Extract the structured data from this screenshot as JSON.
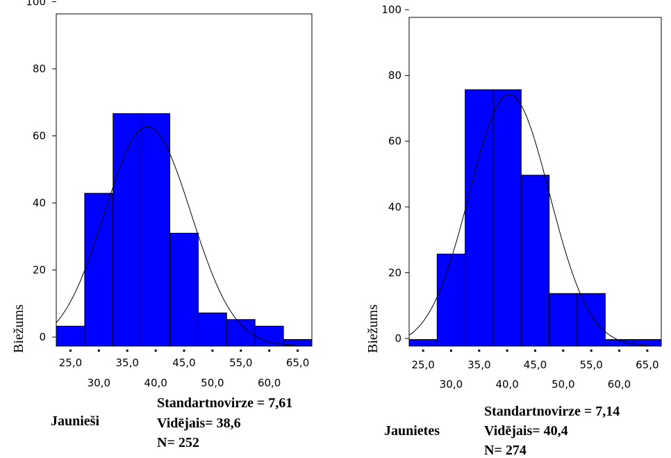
{
  "chart_data": [
    {
      "type": "bar",
      "subtype": "histogram-with-normal-curve",
      "title": "",
      "xlabel": "",
      "ylabel": "Biežums",
      "group_label": "Jaunieši",
      "ylim": [
        0,
        100
      ],
      "yticks": [
        "0",
        "20",
        "40",
        "60",
        "80",
        "100"
      ],
      "xlim": [
        22.5,
        67.5
      ],
      "bin_width": 5,
      "bin_centers": [
        25,
        30,
        35,
        40,
        45,
        50,
        55,
        60,
        65
      ],
      "values": [
        6,
        46,
        70,
        70,
        34,
        10,
        8,
        6,
        2
      ],
      "xticks_top": [
        "25,0",
        "35,0",
        "45,0",
        "55,0",
        "65,0"
      ],
      "xticks_bottom": [
        "30,0",
        "40,0",
        "50,0",
        "60,0"
      ],
      "bar_color": "#0000ff",
      "normal_curve": {
        "mean": 38.6,
        "std": 7.61,
        "n": 252
      },
      "stats": {
        "std_label": "Standartnovirze = 7,61",
        "mean_label": "Vidējais= 38,6",
        "n_label": "N= 252"
      }
    },
    {
      "type": "bar",
      "subtype": "histogram-with-normal-curve",
      "title": "",
      "xlabel": "",
      "ylabel": "Biežums",
      "group_label": "Jaunietes",
      "ylim": [
        0,
        100
      ],
      "yticks": [
        "0",
        "20",
        "40",
        "60",
        "80",
        "100"
      ],
      "xlim": [
        22.5,
        67.5
      ],
      "bin_width": 5,
      "bin_centers": [
        25,
        30,
        35,
        40,
        45,
        50,
        55,
        60,
        65
      ],
      "values": [
        2,
        28,
        78,
        78,
        52,
        16,
        16,
        2,
        2
      ],
      "xticks_top": [
        "25,0",
        "35,0",
        "45,0",
        "55,0",
        "65,0"
      ],
      "xticks_bottom": [
        "30,0",
        "40,0",
        "50,0",
        "60,0"
      ],
      "bar_color": "#0000ff",
      "normal_curve": {
        "mean": 40.4,
        "std": 7.14,
        "n": 274
      },
      "stats": {
        "std_label": "Standartnovirze = 7,14",
        "mean_label": "Vidējais= 40,4",
        "n_label": "N= 274"
      }
    }
  ]
}
